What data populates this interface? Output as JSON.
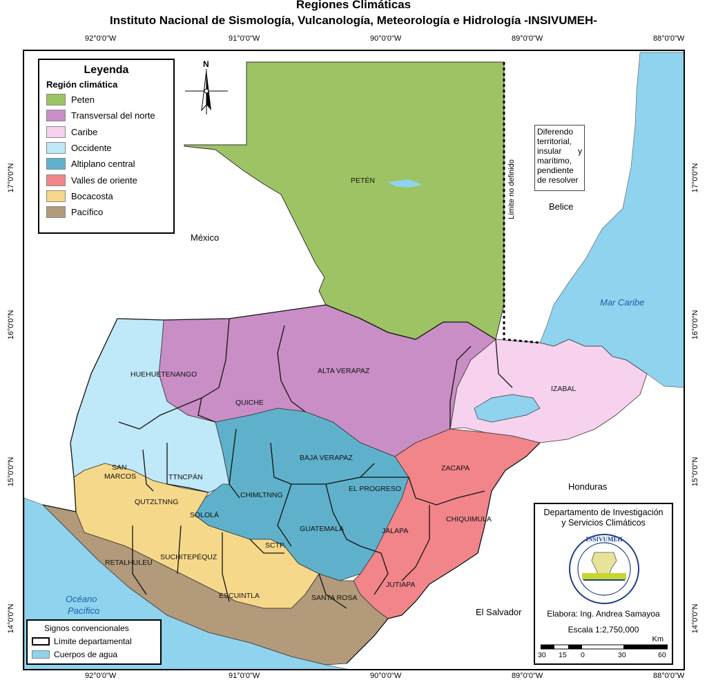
{
  "title": "Regiones Climáticas",
  "subtitle": "Instituto Nacional de Sismología, Vulcanología, Meteorología e Hidrología -INSIVUMEH-",
  "coords": {
    "top": [
      "92°0'0\"W",
      "91°0'0\"W",
      "90°0'0\"W",
      "89°0'0\"W",
      "88°0'0\"W"
    ],
    "bottom": [
      "92°0'0\"W",
      "91°0'0\"W",
      "90°0'0\"W",
      "89°0'0\"W",
      "88°0'0\"W"
    ],
    "left": [
      "17°0'0\"N",
      "16°0'0\"N",
      "15°0'0\"N",
      "14°0'0\"N"
    ],
    "right": [
      "17°0'0\"N",
      "16°0'0\"N",
      "15°0'0\"N",
      "14°0'0\"N"
    ]
  },
  "legend": {
    "heading": "Leyenda",
    "subheading": "Región climática",
    "items": [
      {
        "label": "Peten",
        "color": "#9dc364"
      },
      {
        "label": "Transversal del norte",
        "color": "#c98ec5"
      },
      {
        "label": "Caribe",
        "color": "#f6d2ee"
      },
      {
        "label": "Occidente",
        "color": "#bfe8f8"
      },
      {
        "label": "Altiplano central",
        "color": "#5fb1cb"
      },
      {
        "label": "Valles de oriente",
        "color": "#f1858a"
      },
      {
        "label": "Bocacosta",
        "color": "#f6d88a"
      },
      {
        "label": "Pacífico",
        "color": "#b29a7a"
      }
    ]
  },
  "signs": {
    "heading": "Signos convencionales",
    "items": [
      {
        "label": "Límite departamental",
        "icon": "black-outline-box"
      },
      {
        "label": "Cuerpos de agua",
        "icon": "blue-filled-box",
        "color": "#8fd3ee"
      }
    ]
  },
  "compass_label": "N",
  "dispute_note": "Diferendo territorial, insular y marítimo, pendiente de resolver",
  "limit_label": "Límite no definido",
  "countries": {
    "mexico": "México",
    "belice": "Belice",
    "honduras": "Honduras",
    "el_salvador": "El Salvador"
  },
  "water": {
    "caribe": "Mar Caribe",
    "pacifico_1": "Océano",
    "pacifico_2": "Pacífico"
  },
  "departments": {
    "peten": "PETÉN",
    "huehuetenango": "HUEHUETENANGO",
    "quiche": "QUICHE",
    "alta_verapaz": "ALTA VERAPAZ",
    "izabal": "IZABAL",
    "san_marcos_1": "SAN",
    "san_marcos_2": "MARCOS",
    "ttncpan": "TTNCPÁN",
    "baja_verapaz": "BAJA VERAPAZ",
    "zacapa": "ZACAPA",
    "el_progreso": "EL PROGRESO",
    "qutzltnng": "QUTZLTNNG",
    "chimltnng": "CHIMLTNNG",
    "solola": "SOLOLÁ",
    "chiquimula": "CHIQUIMULA",
    "guatemala": "GUATEMALA",
    "jalapa": "JALAPA",
    "sctp": "SCTP.",
    "retalhuleu": "RETALHULEU",
    "suchitepequez": "SUCHITEPÉQUZ",
    "escuintla": "ESCUINTLA",
    "santa_rosa": "SANTA ROSA",
    "jutiapa": "JUTIAPA"
  },
  "credits": {
    "department_1": "Departamento de Investigación",
    "department_2": "y Servicios Climáticos",
    "seal_text": "INSIVUMEH",
    "elabora": "Elabora: Ing. Andrea Samayoa",
    "escala": "Escala  1:2,750,000",
    "km": "Km",
    "scale_ticks": [
      "30",
      "15",
      "0",
      "30",
      "60"
    ]
  }
}
